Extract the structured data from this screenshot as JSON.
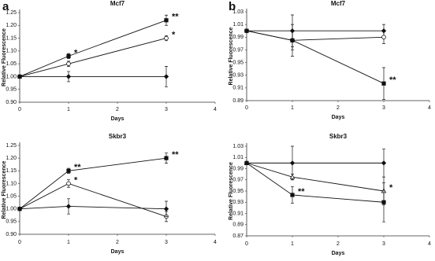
{
  "chart_data": [
    {
      "type": "line",
      "panel": "a",
      "title": "Mcf7",
      "x_label": "Days",
      "y_label": "Relative Fluorescence",
      "x": [
        0,
        1,
        3
      ],
      "xlim": [
        0,
        4
      ],
      "xticks": [
        0,
        1,
        2,
        3,
        4
      ],
      "ylim": [
        0.9,
        1.25
      ],
      "yticks": [
        {
          "value": 0.9,
          "label": "0.90"
        },
        0.95,
        {
          "value": 1.0,
          "label": "1.00"
        },
        1.05,
        {
          "value": 1.1,
          "label": "1.10"
        },
        1.15,
        {
          "value": 1.2,
          "label": "1.20"
        },
        1.25
      ],
      "series": [
        {
          "color": "#111111",
          "marker": "square-filled",
          "values": [
            1.0,
            1.08,
            1.22
          ],
          "errors": [
            0,
            0.01,
            0.02
          ],
          "annotations": [
            null,
            "*",
            "**"
          ]
        },
        {
          "color": "#111111",
          "marker": "circle-open",
          "values": [
            1.0,
            1.05,
            1.15
          ],
          "errors": [
            0,
            0.01,
            0.01
          ],
          "annotations": [
            null,
            null,
            "*"
          ]
        },
        {
          "color": "#111111",
          "marker": "diamond-filled",
          "values": [
            1.0,
            1.0,
            1.0
          ],
          "errors": [
            0,
            0.02,
            0.04
          ],
          "annotations": [
            null,
            null,
            null
          ]
        }
      ]
    },
    {
      "type": "line",
      "panel": "b",
      "title": "Mcf7",
      "x_label": "Days",
      "y_label": "Relative Fluorescence",
      "x": [
        0,
        1,
        3
      ],
      "xlim": [
        0,
        4
      ],
      "xticks": [
        0,
        1,
        2,
        3,
        4
      ],
      "ylim": [
        0.89,
        1.03
      ],
      "yticks": [
        0.89,
        0.91,
        0.93,
        0.95,
        0.97,
        0.99,
        1.01,
        1.03
      ],
      "series": [
        {
          "color": "#111111",
          "marker": "diamond-filled",
          "values": [
            1.0,
            1.0,
            1.0
          ],
          "errors": [
            0,
            0.025,
            0.01
          ],
          "annotations": [
            null,
            null,
            null
          ]
        },
        {
          "color": "#111111",
          "marker": "circle-open",
          "values": [
            1.0,
            0.985,
            0.99
          ],
          "errors": [
            0,
            0.015,
            0.01
          ],
          "annotations": [
            null,
            null,
            null
          ]
        },
        {
          "color": "#111111",
          "marker": "square-filled",
          "values": [
            1.0,
            0.985,
            0.917
          ],
          "errors": [
            0,
            0.025,
            0.025
          ],
          "annotations": [
            null,
            null,
            "**"
          ]
        }
      ]
    },
    {
      "type": "line",
      "title": "Skbr3",
      "x_label": "Days",
      "y_label": "Relative Fluorescence",
      "x": [
        0,
        1,
        3
      ],
      "xlim": [
        0,
        4
      ],
      "xticks": [
        0,
        1,
        2,
        3,
        4
      ],
      "ylim": [
        0.9,
        1.25
      ],
      "yticks": [
        {
          "value": 0.9,
          "label": "0.90"
        },
        0.95,
        {
          "value": 1.0,
          "label": "1.00"
        },
        1.05,
        {
          "value": 1.1,
          "label": "1.10"
        },
        1.15,
        {
          "value": 1.2,
          "label": "1.20"
        },
        1.25
      ],
      "series": [
        {
          "color": "#111111",
          "marker": "square-filled",
          "values": [
            1.0,
            1.15,
            1.2
          ],
          "errors": [
            0,
            0.01,
            0.02
          ],
          "annotations": [
            null,
            "**",
            "**"
          ]
        },
        {
          "color": "#111111",
          "marker": "circle-open",
          "values": [
            1.0,
            1.1,
            0.97
          ],
          "errors": [
            0,
            0.015,
            0.02
          ],
          "annotations": [
            null,
            "*",
            null
          ]
        },
        {
          "color": "#111111",
          "marker": "diamond-filled",
          "values": [
            1.0,
            1.01,
            1.0
          ],
          "errors": [
            0,
            0.03,
            0.03
          ],
          "annotations": [
            null,
            null,
            null
          ]
        }
      ]
    },
    {
      "type": "line",
      "title": "Skbr3",
      "x_label": "Days",
      "y_label": "Relative Fluorescence",
      "x": [
        0,
        1,
        3
      ],
      "xlim": [
        0,
        4
      ],
      "xticks": [
        0,
        1,
        2,
        3,
        4
      ],
      "ylim": [
        0.87,
        1.03
      ],
      "yticks": [
        0.87,
        0.89,
        0.91,
        0.93,
        0.95,
        0.97,
        0.99,
        1.01,
        1.03
      ],
      "series": [
        {
          "color": "#111111",
          "marker": "diamond-filled",
          "values": [
            1.0,
            1.0,
            1.0
          ],
          "errors": [
            0,
            0.03,
            0.025
          ],
          "annotations": [
            null,
            null,
            null
          ]
        },
        {
          "color": "#111111",
          "marker": "triangle-open",
          "values": [
            1.0,
            0.975,
            0.95
          ],
          "errors": [
            0,
            0.005,
            0.025
          ],
          "annotations": [
            null,
            null,
            "*"
          ]
        },
        {
          "color": "#111111",
          "marker": "square-filled",
          "values": [
            1.0,
            0.943,
            0.93
          ],
          "errors": [
            0,
            0.015,
            0.035
          ],
          "annotations": [
            null,
            "**",
            null
          ]
        }
      ]
    }
  ]
}
